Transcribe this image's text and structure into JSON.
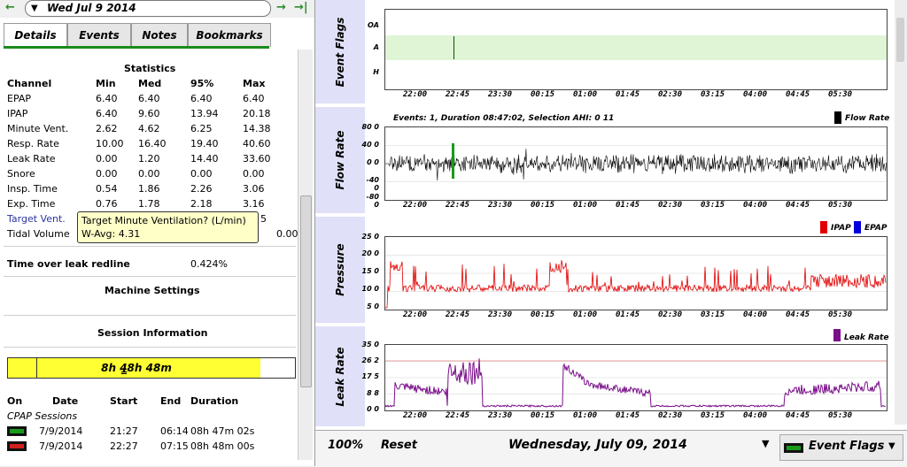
{
  "window": {
    "date_label": "Wed Jul 9 2014",
    "nav_prev": "←",
    "nav_dropdown": "▼",
    "nav_next": "→",
    "nav_last": "→|"
  },
  "tabs": [
    {
      "label": "Details",
      "active": true
    },
    {
      "label": "Events",
      "active": false
    },
    {
      "label": "Notes",
      "active": false
    },
    {
      "label": "Bookmarks",
      "active": false
    }
  ],
  "statistics": {
    "title": "Statistics",
    "headers": [
      "Channel",
      "Min",
      "Med",
      "95%",
      "Max"
    ],
    "rows": [
      [
        "EPAP",
        "6.40",
        "6.40",
        "6.40",
        "6.40"
      ],
      [
        "IPAP",
        "6.40",
        "9.60",
        "13.94",
        "20.18"
      ],
      [
        "Minute Vent.",
        "2.62",
        "4.62",
        "6.25",
        "14.38"
      ],
      [
        "Resp. Rate",
        "10.00",
        "16.40",
        "19.40",
        "40.60"
      ],
      [
        "Leak Rate",
        "0.00",
        "1.20",
        "14.40",
        "33.60"
      ],
      [
        "Snore",
        "0.00",
        "0.00",
        "0.00",
        "0.00"
      ],
      [
        "Insp. Time",
        "0.54",
        "1.86",
        "2.26",
        "3.06"
      ],
      [
        "Exp. Time",
        "0.76",
        "1.78",
        "2.18",
        "3.16"
      ],
      [
        "Target Vent.",
        "",
        "",
        "",
        "5"
      ],
      [
        "Tidal Volume",
        "",
        "",
        "",
        "0.00"
      ]
    ]
  },
  "tooltip": {
    "line1": "Target Minute Ventilation? (L/min)",
    "line2": "W-Avg: 4.31"
  },
  "leak_redline": {
    "label": "Time over leak redline",
    "value": "0.424%"
  },
  "machine_settings": {
    "title": "Machine Settings"
  },
  "session_info": {
    "title": "Session Information",
    "usage_text": "8h 4̵̳8h 48m",
    "usage_fraction": 0.88,
    "headers": [
      "On",
      "Date",
      "Start",
      "End",
      "Duration"
    ],
    "group_label": "CPAP Sessions",
    "sessions": [
      {
        "date": "7/9/2014",
        "start": "21:27",
        "end": "06:14",
        "duration": "08h 47m 02s"
      },
      {
        "date": "7/9/2014",
        "start": "22:27",
        "end": "07:15",
        "duration": "08h 48m 00s"
      }
    ]
  },
  "graphs": {
    "event_flags": {
      "title": "Event Flags",
      "yticks": [
        "OA",
        "A",
        "H"
      ],
      "band_color": "#dff5d5"
    },
    "flow_rate": {
      "title": "Flow Rate",
      "header": "Events: 1, Duration 08:47:02, Selection AHI: 0 11",
      "legend": "Flow Rate",
      "yticks": [
        "80 0",
        "40 0",
        "0 0",
        "-40 0",
        "-80 0"
      ],
      "color": "#000000"
    },
    "pressure": {
      "title": "Pressure",
      "legend": [
        "IPAP",
        "EPAP"
      ],
      "yticks": [
        "25 0",
        "20 0",
        "15 0",
        "10 0",
        "5 0"
      ],
      "ipap_color": "#e00000",
      "epap_color": "#0000dd"
    },
    "leak_rate": {
      "title": "Leak Rate",
      "legend": "Leak Rate",
      "yticks": [
        "35 0",
        "26 2",
        "17 5",
        "8 8",
        "0 0"
      ],
      "color": "#7a0f8a"
    },
    "time_labels": [
      "22:00",
      "22:45",
      "23:30",
      "00:15",
      "01:00",
      "01:45",
      "02:30",
      "03:15",
      "04:00",
      "04:45",
      "05:30"
    ]
  },
  "bottombar": {
    "zoom": "100%",
    "reset": "Reset",
    "date": "Wednesday, July 09, 2014",
    "dropdown_arrow": "▼",
    "event_flags": "Event Flags"
  }
}
